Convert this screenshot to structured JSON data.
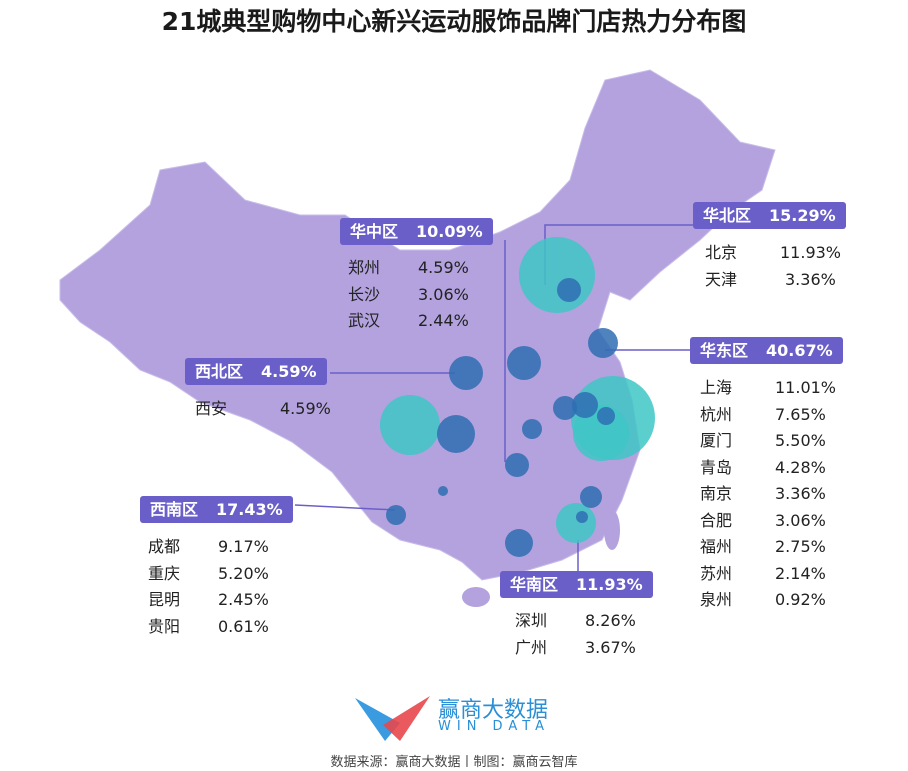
{
  "title": "21城典型购物中心新兴运动服饰品牌门店热力分布图",
  "colors": {
    "map": "#b3a2de",
    "label_box": "#6a5fc8",
    "bubble_large": "#3ec6c6",
    "bubble_small": "#2f6db3"
  },
  "regions": [
    {
      "name": "华中区",
      "pct": "10.09%",
      "cities": [
        {
          "city": "郑州",
          "pct": "4.59%"
        },
        {
          "city": "长沙",
          "pct": "3.06%"
        },
        {
          "city": "武汉",
          "pct": "2.44%"
        }
      ]
    },
    {
      "name": "华北区",
      "pct": "15.29%",
      "cities": [
        {
          "city": "北京",
          "pct": "11.93%"
        },
        {
          "city": "天津",
          "pct": "3.36%"
        }
      ]
    },
    {
      "name": "西北区",
      "pct": "4.59%",
      "cities": [
        {
          "city": "西安",
          "pct": "4.59%"
        }
      ]
    },
    {
      "name": "华东区",
      "pct": "40.67%",
      "cities": [
        {
          "city": "上海",
          "pct": "11.01%"
        },
        {
          "city": "杭州",
          "pct": "7.65%"
        },
        {
          "city": "厦门",
          "pct": "5.50%"
        },
        {
          "city": "青岛",
          "pct": "4.28%"
        },
        {
          "city": "南京",
          "pct": "3.36%"
        },
        {
          "city": "合肥",
          "pct": "3.06%"
        },
        {
          "city": "福州",
          "pct": "2.75%"
        },
        {
          "city": "苏州",
          "pct": "2.14%"
        },
        {
          "city": "泉州",
          "pct": "0.92%"
        }
      ]
    },
    {
      "name": "西南区",
      "pct": "17.43%",
      "cities": [
        {
          "city": "成都",
          "pct": "9.17%"
        },
        {
          "city": "重庆",
          "pct": "5.20%"
        },
        {
          "city": "昆明",
          "pct": "2.45%"
        },
        {
          "city": "贵阳",
          "pct": "0.61%"
        }
      ]
    },
    {
      "name": "华南区",
      "pct": "11.93%",
      "cities": [
        {
          "city": "深圳",
          "pct": "8.26%"
        },
        {
          "city": "广州",
          "pct": "3.67%"
        }
      ]
    }
  ],
  "logo": {
    "name": "赢商大数据",
    "sub": "WIN DATA"
  },
  "source": "数据来源：赢商大数据丨制图：赢商云智库"
}
